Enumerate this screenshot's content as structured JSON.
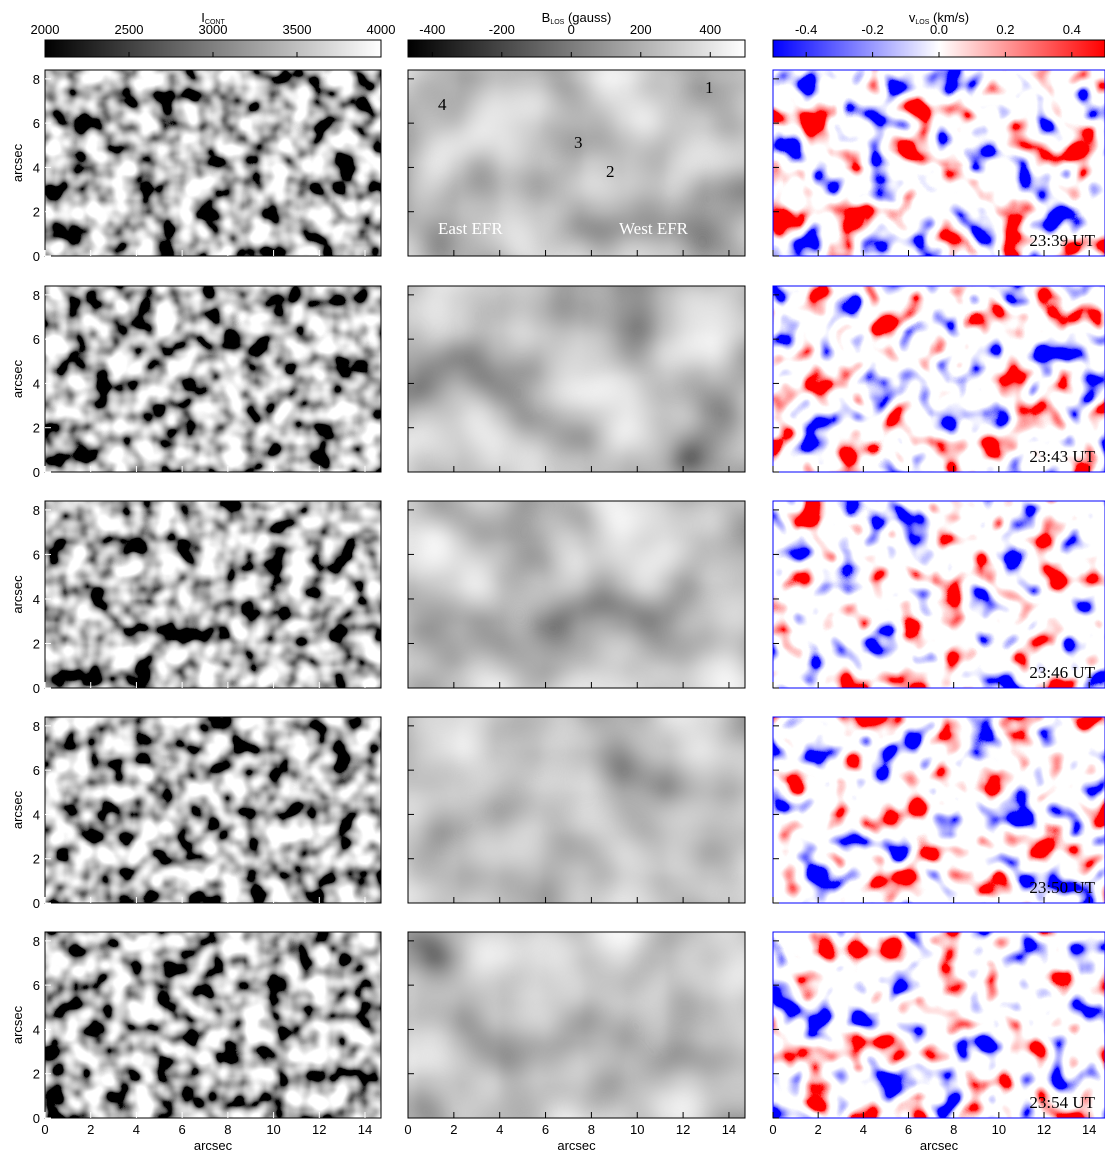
{
  "colorbars": [
    {
      "title": "I",
      "subscript": "CONT",
      "lim": [
        2000,
        4000
      ],
      "ticks": [
        2000,
        2500,
        3000,
        3500,
        4000
      ],
      "colors": [
        "#000000",
        "#ffffff"
      ]
    },
    {
      "title": "B",
      "subscript": "LOS",
      "unit": "(gauss)",
      "lim": [
        -470,
        500
      ],
      "ticks": [
        -400,
        -200,
        0,
        200,
        400
      ],
      "colors": [
        "#000000",
        "#ffffff"
      ]
    },
    {
      "title": "v",
      "subscript": "LOS",
      "unit": "(km/s)",
      "lim": [
        -0.5,
        0.5
      ],
      "ticks": [
        -0.4,
        -0.2,
        {
          "value": 0,
          "label": "0.0"
        },
        0.2,
        0.4
      ],
      "colors": [
        "#0000ff",
        "#ffffff",
        "#ff0000"
      ]
    }
  ],
  "panels": {
    "xlabel": "arcsec",
    "ylabel": "arcsec",
    "xlim": [
      0,
      14.7
    ],
    "ylim": [
      0,
      8.4
    ],
    "xticks": [
      0,
      2,
      4,
      6,
      8,
      10,
      12,
      14
    ],
    "yticks": [
      0,
      2,
      4,
      6,
      8
    ]
  },
  "times": [
    "23:39 UT",
    "23:43 UT",
    "23:46 UT",
    "23:50 UT",
    "23:54 UT"
  ],
  "annotations": {
    "labels": [
      "1",
      "2",
      "3",
      "4"
    ],
    "regions": [
      "East EFR",
      "West EFR"
    ]
  }
}
